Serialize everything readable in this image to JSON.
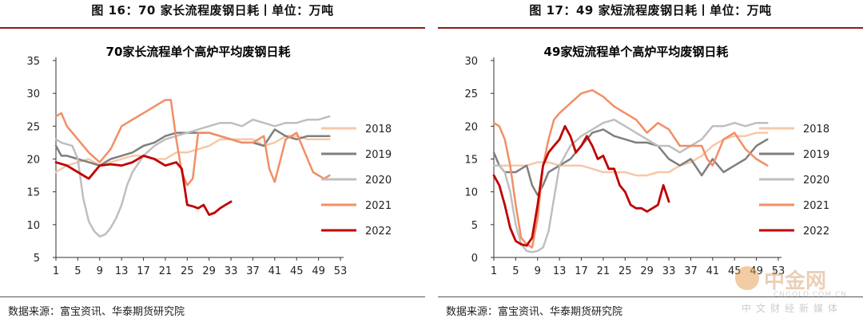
{
  "figures": [
    {
      "fig_title": "图 16：70 家长流程废钢日耗丨单位：万吨",
      "source": "数据来源：富宝资讯、华泰期货研究院"
    },
    {
      "fig_title": "图 17：49 家短流程废钢日耗丨单位：万吨",
      "source": "数据来源：富宝资讯、华泰期货研究院"
    }
  ],
  "watermark": {
    "name": "中金网",
    "url": "CNGOLD.COM.CN",
    "tagline": "中文财经新媒体"
  },
  "chart_data": [
    {
      "type": "line",
      "title": "70家长流程单个高炉平均废钢日耗",
      "xlabel": "",
      "ylabel": "",
      "x_ticks": [
        1,
        5,
        9,
        13,
        17,
        21,
        25,
        29,
        33,
        37,
        41,
        45,
        49,
        53
      ],
      "xlim": [
        1,
        53
      ],
      "ylim": [
        5,
        35
      ],
      "y_ticks": [
        5,
        10,
        15,
        20,
        25,
        30,
        35
      ],
      "legend_position": "right",
      "series": [
        {
          "name": "2018",
          "color": "#f6c8a8",
          "width": 2.5,
          "x": [
            1,
            3,
            5,
            7,
            9,
            11,
            13,
            15,
            17,
            19,
            21,
            23,
            25,
            27,
            29,
            31,
            33,
            35,
            37,
            39,
            41,
            43,
            45,
            47,
            49,
            51
          ],
          "y": [
            18,
            19,
            19.5,
            20,
            19,
            19.5,
            20,
            20.5,
            20.5,
            20,
            20,
            21,
            21,
            21.5,
            22,
            23,
            23,
            23,
            23,
            22,
            22.5,
            23.5,
            23.5,
            23,
            23,
            23
          ]
        },
        {
          "name": "2019",
          "color": "#7f7f7f",
          "width": 2.5,
          "x": [
            1,
            2,
            3,
            5,
            7,
            9,
            11,
            13,
            15,
            17,
            19,
            21,
            23,
            25,
            27,
            29,
            31,
            33,
            35,
            37,
            39,
            41,
            43,
            45,
            47,
            49,
            51
          ],
          "y": [
            22,
            20.5,
            20.5,
            20,
            19.5,
            19,
            20,
            20.5,
            21,
            22,
            22.5,
            23.5,
            24,
            24,
            24,
            24,
            23.5,
            23,
            22.5,
            22.5,
            22,
            24.5,
            23.5,
            23,
            23.5,
            23.5,
            23.5
          ]
        },
        {
          "name": "2020",
          "color": "#bfbfbf",
          "width": 2.5,
          "x": [
            1,
            2,
            4,
            5,
            6,
            7,
            8,
            9,
            10,
            11,
            12,
            13,
            14,
            15,
            17,
            19,
            21,
            23,
            25,
            27,
            29,
            31,
            33,
            35,
            37,
            39,
            41,
            43,
            45,
            47,
            49,
            51
          ],
          "y": [
            23,
            22.5,
            22,
            20,
            14,
            10.5,
            9,
            8.2,
            8.5,
            9.5,
            11,
            13,
            16,
            18,
            20.5,
            22,
            23,
            23.5,
            24,
            24.5,
            25,
            25.5,
            25.5,
            25,
            26,
            25.5,
            25,
            25.5,
            25.5,
            26,
            26,
            26.5
          ]
        },
        {
          "name": "2021",
          "color": "#f28e66",
          "width": 2.5,
          "x": [
            1,
            2,
            3,
            5,
            7,
            9,
            11,
            13,
            15,
            17,
            19,
            21,
            22,
            23,
            24,
            25,
            26,
            27,
            29,
            31,
            33,
            35,
            37,
            39,
            40,
            41,
            43,
            45,
            47,
            48,
            49,
            50,
            51
          ],
          "y": [
            26.5,
            27,
            25,
            23,
            21,
            19.5,
            21.5,
            25,
            26,
            27,
            28,
            29,
            29,
            23,
            18,
            16,
            17,
            24,
            24,
            23.5,
            23,
            22.5,
            22.5,
            23.5,
            18.5,
            16.5,
            23,
            24,
            20,
            18,
            17.5,
            17,
            17.5
          ]
        },
        {
          "name": "2022",
          "color": "#c00000",
          "width": 2.8,
          "x": [
            1,
            3,
            5,
            7,
            9,
            11,
            13,
            15,
            17,
            19,
            21,
            23,
            24,
            25,
            26,
            27,
            28,
            29,
            30,
            31,
            32,
            33
          ],
          "y": [
            19.5,
            19,
            18,
            17,
            19,
            19.2,
            19,
            19.5,
            20.5,
            20,
            19,
            19.5,
            18.5,
            13,
            12.8,
            12.5,
            13,
            11.5,
            11.8,
            12.5,
            13,
            13.5
          ]
        }
      ]
    },
    {
      "type": "line",
      "title": "49家短流程单个高炉平均废钢日耗",
      "xlabel": "",
      "ylabel": "",
      "x_ticks": [
        1,
        5,
        9,
        13,
        17,
        21,
        25,
        29,
        33,
        37,
        41,
        45,
        49,
        53
      ],
      "xlim": [
        1,
        53
      ],
      "ylim": [
        0,
        30
      ],
      "y_ticks": [
        0,
        5,
        10,
        15,
        20,
        25,
        30
      ],
      "legend_position": "right",
      "series": [
        {
          "name": "2018",
          "color": "#f6c8a8",
          "width": 2.5,
          "x": [
            1,
            3,
            5,
            7,
            9,
            11,
            13,
            15,
            17,
            19,
            21,
            23,
            25,
            27,
            29,
            31,
            33,
            35,
            37,
            39,
            41,
            43,
            45,
            47,
            49,
            51
          ],
          "y": [
            14,
            14,
            14,
            14,
            14.5,
            14.5,
            14,
            14,
            14,
            13.5,
            13,
            13,
            13,
            12.5,
            12.5,
            13,
            13,
            14,
            14.5,
            15.5,
            17,
            18,
            18.5,
            18.5,
            19,
            19
          ]
        },
        {
          "name": "2019",
          "color": "#7f7f7f",
          "width": 2.5,
          "x": [
            1,
            2,
            3,
            5,
            6,
            7,
            8,
            9,
            10,
            11,
            13,
            15,
            17,
            19,
            21,
            23,
            25,
            27,
            29,
            31,
            33,
            35,
            37,
            39,
            41,
            43,
            45,
            47,
            49,
            51
          ],
          "y": [
            16,
            14,
            13,
            13,
            13.5,
            14,
            11,
            9.5,
            11,
            13,
            14,
            15,
            17,
            19,
            19.5,
            18.5,
            18,
            17.5,
            17.5,
            17,
            15,
            14,
            15,
            12.5,
            15,
            13,
            14,
            15,
            17,
            18
          ]
        },
        {
          "name": "2020",
          "color": "#bfbfbf",
          "width": 2.5,
          "x": [
            1,
            2,
            3,
            4,
            5,
            6,
            7,
            8,
            9,
            10,
            11,
            12,
            13,
            15,
            17,
            19,
            21,
            23,
            25,
            27,
            29,
            31,
            33,
            35,
            37,
            39,
            41,
            43,
            45,
            47,
            49,
            51
          ],
          "y": [
            14,
            14,
            13,
            10,
            5,
            2,
            1,
            0.8,
            1,
            1.5,
            4,
            9,
            14,
            17,
            18.5,
            19.5,
            20.5,
            21,
            20,
            19,
            18,
            17,
            17,
            16,
            17,
            18,
            20,
            20,
            20.5,
            20,
            20.5,
            20.5
          ]
        },
        {
          "name": "2021",
          "color": "#f28e66",
          "width": 2.5,
          "x": [
            1,
            2,
            3,
            4,
            5,
            6,
            7,
            8,
            9,
            10,
            11,
            12,
            13,
            15,
            17,
            19,
            20,
            21,
            23,
            25,
            27,
            29,
            31,
            33,
            35,
            37,
            39,
            40,
            41,
            43,
            45,
            47,
            49,
            51
          ],
          "y": [
            20.5,
            20,
            18,
            14,
            8,
            3,
            2,
            1.5,
            6,
            14,
            18,
            21,
            22,
            23.5,
            25,
            25.5,
            25,
            24.5,
            23,
            22,
            21,
            19,
            20.5,
            19.5,
            17,
            17,
            17,
            15,
            14,
            18,
            19,
            16.5,
            15,
            14
          ]
        },
        {
          "name": "2022",
          "color": "#c00000",
          "width": 2.8,
          "x": [
            1,
            2,
            3,
            4,
            5,
            6,
            7,
            8,
            9,
            10,
            11,
            12,
            13,
            14,
            15,
            16,
            17,
            18,
            19,
            20,
            21,
            22,
            23,
            24,
            25,
            26,
            27,
            28,
            29,
            30,
            31,
            32,
            33
          ],
          "y": [
            12.5,
            11,
            8,
            4.5,
            2.5,
            2,
            1.8,
            3,
            8,
            14,
            16,
            17,
            18,
            20,
            18.5,
            16,
            17,
            18.5,
            17,
            15,
            15.5,
            13.5,
            13.5,
            11,
            10,
            8,
            7.5,
            7.5,
            7,
            7.5,
            8,
            11,
            8.5
          ]
        }
      ]
    }
  ]
}
